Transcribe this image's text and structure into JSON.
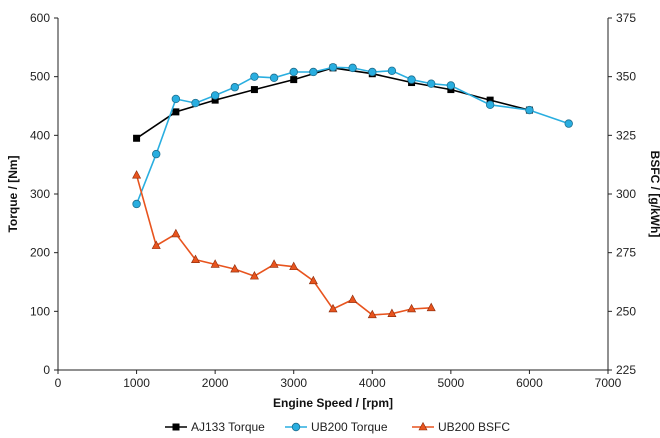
{
  "chart_data": {
    "type": "line",
    "xlabel": "Engine Speed / [rpm]",
    "ylabel": "Torque / [Nm]",
    "y2label": "BSFC / [g/kWh]",
    "xlim": [
      0,
      7000
    ],
    "ylim": [
      0,
      600
    ],
    "y2lim": [
      225,
      375
    ],
    "xticks": [
      "0",
      "1000",
      "2000",
      "3000",
      "4000",
      "5000",
      "6000",
      "7000"
    ],
    "yticks": [
      "0",
      "100",
      "200",
      "300",
      "400",
      "500",
      "600"
    ],
    "y2ticks": [
      "225",
      "250",
      "275",
      "300",
      "325",
      "350",
      "375"
    ],
    "grid": false,
    "legend_position": "bottom",
    "series": [
      {
        "name": "AJ133 Torque",
        "axis": "left",
        "color": "#000000",
        "marker": "square",
        "x": [
          1000,
          1500,
          2000,
          2500,
          3000,
          3500,
          4000,
          4500,
          5000,
          5500,
          6000
        ],
        "y": [
          395,
          440,
          460,
          478,
          495,
          515,
          505,
          490,
          478,
          460,
          443
        ]
      },
      {
        "name": "UB200 Torque",
        "axis": "left",
        "color": "#29aee0",
        "marker": "circle",
        "x": [
          1000,
          1250,
          1500,
          1750,
          2000,
          2250,
          2500,
          2750,
          3000,
          3250,
          3500,
          3750,
          4000,
          4250,
          4500,
          4750,
          5000,
          5500,
          6000,
          6500
        ],
        "y": [
          283,
          368,
          462,
          455,
          468,
          482,
          500,
          498,
          508,
          508,
          516,
          515,
          508,
          510,
          495,
          488,
          485,
          452,
          443,
          420
        ]
      },
      {
        "name": "UB200 BSFC",
        "axis": "right",
        "color": "#e8541e",
        "marker": "triangle",
        "x": [
          1000,
          1250,
          1500,
          1750,
          2000,
          2250,
          2500,
          2750,
          3000,
          3250,
          3500,
          3750,
          4000,
          4250,
          4500,
          4750
        ],
        "y": [
          308,
          278,
          283,
          272,
          270,
          268,
          265,
          270,
          269,
          263,
          251,
          255,
          248.5,
          249,
          251,
          251.5
        ]
      }
    ]
  }
}
